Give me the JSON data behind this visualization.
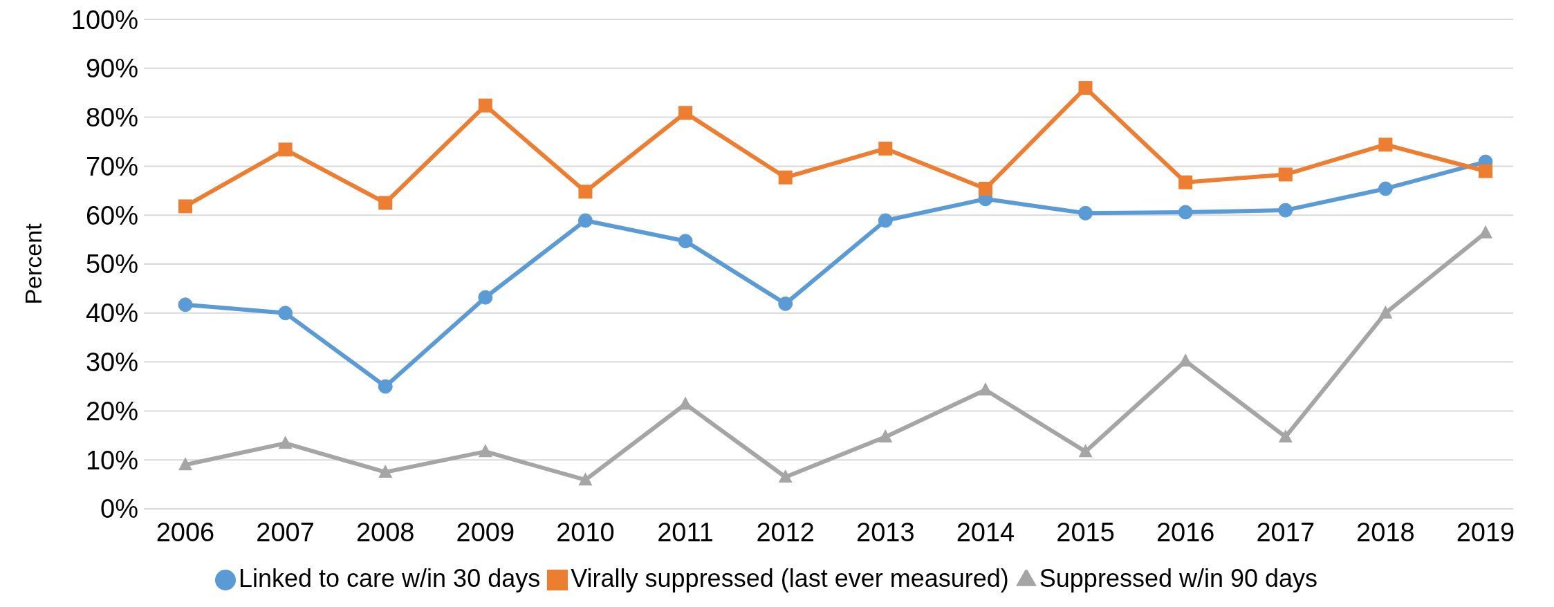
{
  "chart_data": {
    "type": "line",
    "ylabel": "Percent",
    "categories": [
      "2006",
      "2007",
      "2008",
      "2009",
      "2010",
      "2011",
      "2012",
      "2013",
      "2014",
      "2015",
      "2016",
      "2017",
      "2018",
      "2019"
    ],
    "series": [
      {
        "name": "Linked to care w/in 30 days",
        "color": "#5b9bd5",
        "marker": "circle",
        "values": [
          41.7,
          40.0,
          25.0,
          43.2,
          58.9,
          54.7,
          41.9,
          58.9,
          63.3,
          60.4,
          60.6,
          61.0,
          65.4,
          70.9
        ]
      },
      {
        "name": "Virally suppressed (last ever measured)",
        "color": "#ed7d31",
        "marker": "square",
        "values": [
          61.8,
          73.4,
          62.5,
          82.4,
          64.8,
          80.9,
          67.7,
          73.6,
          65.4,
          86.0,
          66.7,
          68.3,
          74.4,
          69.0
        ]
      },
      {
        "name": "Suppressed w/in 90 days",
        "color": "#a5a5a5",
        "marker": "triangle",
        "values": [
          9.0,
          13.4,
          7.5,
          11.7,
          5.9,
          21.4,
          6.5,
          14.7,
          24.3,
          11.7,
          30.2,
          14.7,
          40.0,
          56.4
        ]
      }
    ],
    "ylim": [
      0,
      100
    ],
    "yticks": [
      {
        "value": 0,
        "label": "0%"
      },
      {
        "value": 10,
        "label": "10%"
      },
      {
        "value": 20,
        "label": "20%"
      },
      {
        "value": 30,
        "label": "30%"
      },
      {
        "value": 40,
        "label": "40%"
      },
      {
        "value": 50,
        "label": "50%"
      },
      {
        "value": 60,
        "label": "60%"
      },
      {
        "value": 70,
        "label": "70%"
      },
      {
        "value": 80,
        "label": "80%"
      },
      {
        "value": 90,
        "label": "90%"
      },
      {
        "value": 100,
        "label": "100%"
      }
    ],
    "grid": "y",
    "legend": "bottom",
    "line_style": "solid"
  }
}
